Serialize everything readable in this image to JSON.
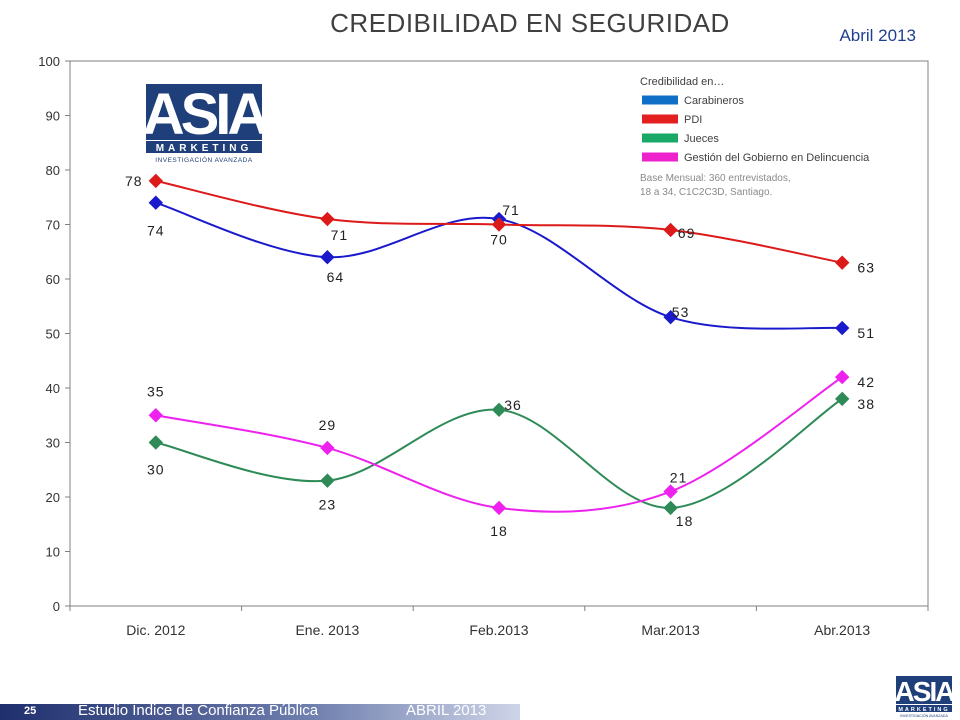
{
  "slide": {
    "title": "CREDIBILIDAD EN SEGURIDAD",
    "date": "Abril 2013",
    "page_number": "25",
    "footer_text": "Estudio Índice de Confianza Pública",
    "footer_date": "ABRIL 2013"
  },
  "logo": {
    "brand": "ASIA",
    "subtitle": "MARKETING",
    "tagline": "INVESTIGACIÓN AVANZADA",
    "colors": {
      "primary": "#1f3f7a",
      "secondary": "#ffffff"
    }
  },
  "legend": {
    "title": "Credibilidad en…",
    "note_line1": "Base Mensual: 360 entrevistados,",
    "note_line2": "18 a 34, C1C2C3D, Santiago."
  },
  "chart_data": {
    "type": "line",
    "categories": [
      "Dic. 2012",
      "Ene. 2013",
      "Feb.2013",
      "Mar.2013",
      "Abr.2013"
    ],
    "ylim": [
      0,
      100
    ],
    "yticks": [
      0,
      10,
      20,
      30,
      40,
      50,
      60,
      70,
      80,
      90,
      100
    ],
    "grid": false,
    "legend_position": "top-right",
    "series": [
      {
        "name": "Carabineros",
        "color": "#1a1acc",
        "legend_color": "#0f6fc6",
        "values": [
          74,
          64,
          71,
          53,
          51
        ]
      },
      {
        "name": "PDI",
        "color": "#dd1a1a",
        "legend_color": "#e41f1f",
        "values": [
          78,
          71,
          70,
          69,
          63
        ]
      },
      {
        "name": "Jueces",
        "color": "#2e8b57",
        "legend_color": "#1aa866",
        "values": [
          30,
          23,
          36,
          18,
          38
        ]
      },
      {
        "name": "Gestión del Gobierno en Delincuencia",
        "color": "#ee22ee",
        "legend_color": "#ee22cc",
        "values": [
          35,
          29,
          18,
          21,
          42
        ]
      }
    ]
  }
}
